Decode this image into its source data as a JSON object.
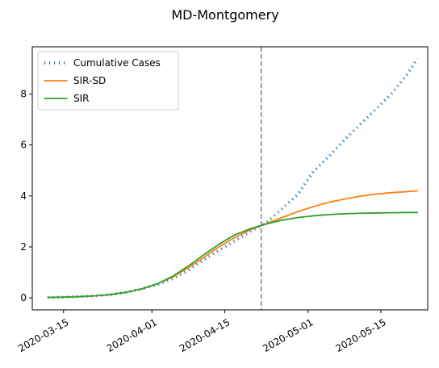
{
  "chart_data": {
    "type": "line",
    "title": "MD-Montgomery",
    "xlabel": "",
    "ylabel": "",
    "x_axis_type": "date",
    "xlim": [
      "2020-03-09",
      "2020-05-24"
    ],
    "ylim": [
      -0.47,
      9.85
    ],
    "x_tick_labels": [
      "2020-03-15",
      "2020-04-01",
      "2020-04-15",
      "2020-05-01",
      "2020-05-15"
    ],
    "y_tick_labels": [
      "0",
      "2",
      "4",
      "6",
      "8"
    ],
    "y_ticks": [
      0,
      2,
      4,
      6,
      8
    ],
    "grid": false,
    "legend_position": "upper-left",
    "vline": {
      "x": "2020-04-22",
      "style": "dashed",
      "color": "#808080"
    },
    "series": [
      {
        "name": "Cumulative Cases",
        "color": "#1f77b4",
        "style": "dotted",
        "points": [
          [
            "2020-03-12",
            0.02
          ],
          [
            "2020-03-15",
            0.03
          ],
          [
            "2020-03-18",
            0.05
          ],
          [
            "2020-03-21",
            0.08
          ],
          [
            "2020-03-24",
            0.13
          ],
          [
            "2020-03-27",
            0.22
          ],
          [
            "2020-03-30",
            0.35
          ],
          [
            "2020-04-02",
            0.52
          ],
          [
            "2020-04-05",
            0.75
          ],
          [
            "2020-04-08",
            1.08
          ],
          [
            "2020-04-11",
            1.5
          ],
          [
            "2020-04-14",
            1.88
          ],
          [
            "2020-04-17",
            2.25
          ],
          [
            "2020-04-20",
            2.62
          ],
          [
            "2020-04-23",
            2.95
          ],
          [
            "2020-04-26",
            3.5
          ],
          [
            "2020-04-29",
            4.05
          ],
          [
            "2020-05-02",
            4.95
          ],
          [
            "2020-05-05",
            5.55
          ],
          [
            "2020-05-08",
            6.2
          ],
          [
            "2020-05-11",
            6.8
          ],
          [
            "2020-05-14",
            7.4
          ],
          [
            "2020-05-17",
            8.0
          ],
          [
            "2020-05-20",
            8.75
          ],
          [
            "2020-05-22",
            9.38
          ]
        ]
      },
      {
        "name": "SIR-SD",
        "color": "#ff7f0e",
        "style": "solid",
        "points": [
          [
            "2020-03-12",
            0.02
          ],
          [
            "2020-03-15",
            0.03
          ],
          [
            "2020-03-18",
            0.05
          ],
          [
            "2020-03-21",
            0.08
          ],
          [
            "2020-03-24",
            0.13
          ],
          [
            "2020-03-27",
            0.22
          ],
          [
            "2020-03-30",
            0.35
          ],
          [
            "2020-04-02",
            0.55
          ],
          [
            "2020-04-05",
            0.82
          ],
          [
            "2020-04-08",
            1.18
          ],
          [
            "2020-04-11",
            1.6
          ],
          [
            "2020-04-14",
            2.02
          ],
          [
            "2020-04-17",
            2.38
          ],
          [
            "2020-04-20",
            2.68
          ],
          [
            "2020-04-23",
            2.92
          ],
          [
            "2020-04-26",
            3.15
          ],
          [
            "2020-04-29",
            3.38
          ],
          [
            "2020-05-02",
            3.58
          ],
          [
            "2020-05-05",
            3.75
          ],
          [
            "2020-05-08",
            3.88
          ],
          [
            "2020-05-11",
            3.99
          ],
          [
            "2020-05-14",
            4.07
          ],
          [
            "2020-05-17",
            4.13
          ],
          [
            "2020-05-20",
            4.17
          ],
          [
            "2020-05-22",
            4.2
          ]
        ]
      },
      {
        "name": "SIR",
        "color": "#2ca02c",
        "style": "solid",
        "points": [
          [
            "2020-03-12",
            0.02
          ],
          [
            "2020-03-15",
            0.03
          ],
          [
            "2020-03-18",
            0.05
          ],
          [
            "2020-03-21",
            0.08
          ],
          [
            "2020-03-24",
            0.13
          ],
          [
            "2020-03-27",
            0.22
          ],
          [
            "2020-03-30",
            0.35
          ],
          [
            "2020-04-02",
            0.55
          ],
          [
            "2020-04-05",
            0.85
          ],
          [
            "2020-04-08",
            1.25
          ],
          [
            "2020-04-11",
            1.7
          ],
          [
            "2020-04-14",
            2.12
          ],
          [
            "2020-04-17",
            2.48
          ],
          [
            "2020-04-20",
            2.72
          ],
          [
            "2020-04-23",
            2.9
          ],
          [
            "2020-04-26",
            3.05
          ],
          [
            "2020-04-29",
            3.15
          ],
          [
            "2020-05-02",
            3.22
          ],
          [
            "2020-05-05",
            3.27
          ],
          [
            "2020-05-08",
            3.3
          ],
          [
            "2020-05-11",
            3.32
          ],
          [
            "2020-05-14",
            3.33
          ],
          [
            "2020-05-17",
            3.34
          ],
          [
            "2020-05-20",
            3.35
          ],
          [
            "2020-05-22",
            3.35
          ]
        ]
      }
    ]
  }
}
